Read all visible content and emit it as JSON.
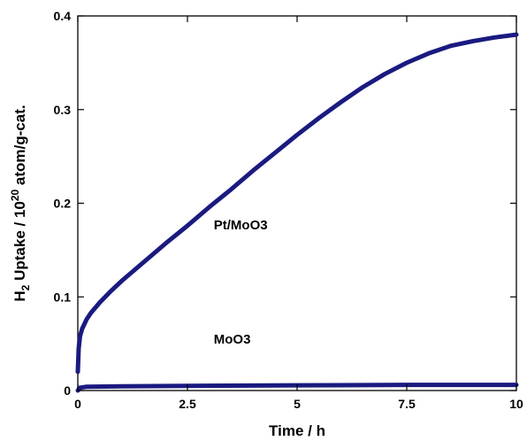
{
  "chart_data": {
    "type": "line",
    "xlabel": "Time / h",
    "ylabel": {
      "prefix": "H",
      "sub": "2",
      "middle": " Uptake / 10",
      "sup": "20",
      "suffix": " atom/g-cat."
    },
    "xlim": [
      0,
      10
    ],
    "ylim": [
      0,
      0.4
    ],
    "xticks": [
      0,
      2.5,
      5,
      7.5,
      10
    ],
    "xtick_labels": [
      "0",
      "2.5",
      "5",
      "7.5",
      "10"
    ],
    "yticks": [
      0,
      0.1,
      0.2,
      0.3,
      0.4
    ],
    "ytick_labels": [
      "0",
      "0.1",
      "0.2",
      "0.3",
      "0.4"
    ],
    "grid": false,
    "series": [
      {
        "name": "Pt/MoO3",
        "color": "#1a1a80",
        "x": [
          0,
          0.02,
          0.05,
          0.1,
          0.2,
          0.3,
          0.5,
          0.75,
          1,
          1.5,
          2,
          2.5,
          3,
          3.5,
          4,
          4.5,
          5,
          5.5,
          6,
          6.5,
          7,
          7.5,
          8,
          8.5,
          9,
          9.5,
          10
        ],
        "y": [
          0.02,
          0.045,
          0.058,
          0.066,
          0.076,
          0.083,
          0.094,
          0.106,
          0.117,
          0.137,
          0.157,
          0.176,
          0.196,
          0.215,
          0.235,
          0.254,
          0.273,
          0.291,
          0.308,
          0.324,
          0.338,
          0.35,
          0.36,
          0.368,
          0.373,
          0.377,
          0.38
        ]
      },
      {
        "name": "MoO3",
        "color": "#1a1a80",
        "x": [
          0,
          0.05,
          0.2,
          1,
          2.5,
          5,
          7.5,
          10
        ],
        "y": [
          0.0,
          0.003,
          0.004,
          0.0045,
          0.005,
          0.0055,
          0.006,
          0.006
        ]
      }
    ],
    "annotations": [
      {
        "text": "Pt/MoO3",
        "x": 3.1,
        "y": 0.172
      },
      {
        "text": "MoO3",
        "x": 3.1,
        "y": 0.05
      }
    ]
  }
}
